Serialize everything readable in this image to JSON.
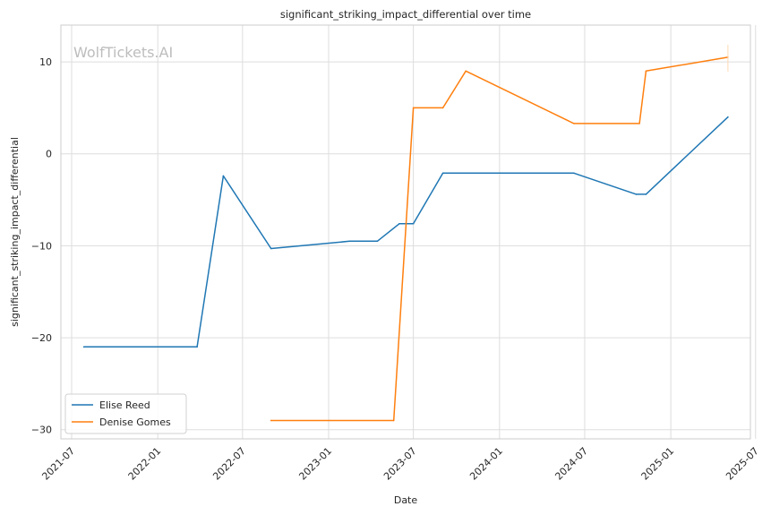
{
  "chart_data": {
    "type": "line",
    "title": "significant_striking_impact_differential over time",
    "xlabel": "Date",
    "ylabel": "significant_striking_impact_differential",
    "watermark": "WolfTickets.AI",
    "xlim": [
      "2021-06-08",
      "2025-06-20"
    ],
    "ylim": [
      -31,
      14
    ],
    "x_ticks": [
      "2021-07",
      "2022-01",
      "2022-07",
      "2023-01",
      "2023-07",
      "2024-01",
      "2024-07",
      "2025-01",
      "2025-07"
    ],
    "y_ticks": [
      -30,
      -20,
      -10,
      0,
      10
    ],
    "grid": true,
    "legend_position": "lower-left",
    "series": [
      {
        "name": "Elise Reed",
        "color": "#1f77b4",
        "points": [
          {
            "x": "2021-07-27",
            "y": -21
          },
          {
            "x": "2022-03-26",
            "y": -21
          },
          {
            "x": "2022-05-21",
            "y": -2.4
          },
          {
            "x": "2022-08-31",
            "y": -10.3
          },
          {
            "x": "2023-02-15",
            "y": -9.5
          },
          {
            "x": "2023-04-15",
            "y": -9.5
          },
          {
            "x": "2023-06-01",
            "y": -7.6
          },
          {
            "x": "2023-07-01",
            "y": -7.6
          },
          {
            "x": "2023-09-02",
            "y": -2.1
          },
          {
            "x": "2024-06-08",
            "y": -2.1
          },
          {
            "x": "2024-10-19",
            "y": -4.4
          },
          {
            "x": "2024-11-09",
            "y": -4.4
          },
          {
            "x": "2025-05-03",
            "y": 4.0
          }
        ]
      },
      {
        "name": "Denise Gomes",
        "color": "#ff7f0e",
        "points": [
          {
            "x": "2022-08-31",
            "y": -29
          },
          {
            "x": "2023-05-20",
            "y": -29
          },
          {
            "x": "2023-07-01",
            "y": 5.0
          },
          {
            "x": "2023-09-02",
            "y": 5.0
          },
          {
            "x": "2023-10-21",
            "y": 9.0
          },
          {
            "x": "2024-06-08",
            "y": 3.3
          },
          {
            "x": "2024-10-26",
            "y": 3.3
          },
          {
            "x": "2024-11-09",
            "y": 9.0
          },
          {
            "x": "2025-05-03",
            "y": 10.5
          }
        ]
      }
    ]
  }
}
